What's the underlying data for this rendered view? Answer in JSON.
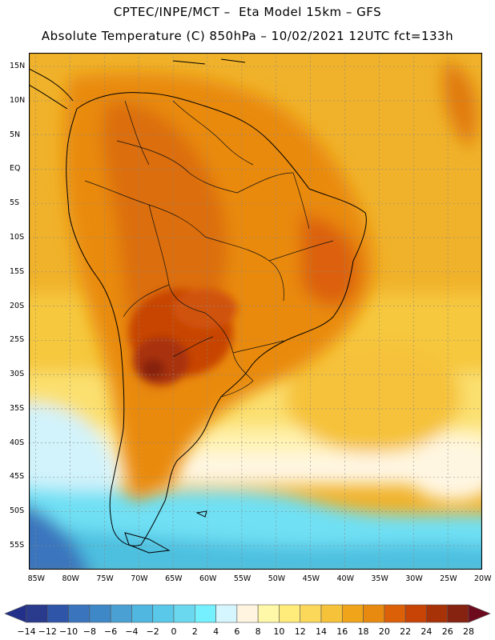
{
  "header": {
    "line1": "CPTEC/INPE/MCT –  Eta Model 15km – GFS",
    "line2": "Absolute Temperature (C) 850hPa – 10/02/2021 12UTC fct=133h"
  },
  "map": {
    "longitude_labels": [
      "85W",
      "80W",
      "75W",
      "70W",
      "65W",
      "60W",
      "55W",
      "50W",
      "45W",
      "40W",
      "35W",
      "30W",
      "25W",
      "20W"
    ],
    "latitude_labels": [
      "15N",
      "10N",
      "5N",
      "EQ",
      "5S",
      "10S",
      "15S",
      "20S",
      "25S",
      "30S",
      "35S",
      "40S",
      "45S",
      "50S",
      "55S"
    ],
    "lon_range": [
      -86,
      -20
    ],
    "lat_range": [
      17,
      -58.5
    ],
    "hotspot": {
      "label": "max temperature core",
      "lon": -68,
      "lat": -28,
      "value_c": 28
    }
  },
  "colorbar": {
    "labels": [
      "-14",
      "-12",
      "-10",
      "-8",
      "-6",
      "-4",
      "-2",
      "0",
      "2",
      "4",
      "6",
      "8",
      "10",
      "12",
      "14",
      "16",
      "18",
      "20",
      "22",
      "24",
      "26",
      "28"
    ],
    "colors": [
      "#2a3a8c",
      "#2f55a8",
      "#3a74bd",
      "#3f88c8",
      "#4aa0d3",
      "#50b7e0",
      "#5ac8e8",
      "#6ad9f0",
      "#74f0ff",
      "#d6f6ff",
      "#fff4e0",
      "#fff8a8",
      "#ffec7a",
      "#fbd85a",
      "#f6c23a",
      "#efa41a",
      "#e98a10",
      "#dc6008",
      "#c74406",
      "#a83208",
      "#852210"
    ],
    "under_color": "#22308a",
    "over_color": "#6e0a1e"
  }
}
